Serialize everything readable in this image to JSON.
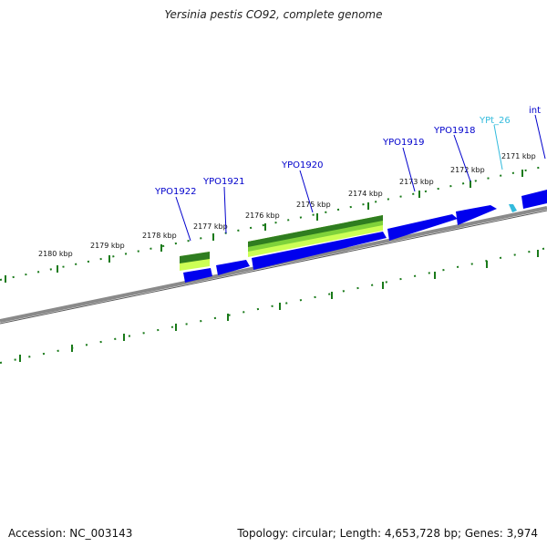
{
  "title": "Yersinia pestis CO92, complete genome",
  "footer": {
    "accession": "Accession: NC_003143",
    "summary": "Topology: circular; Length: 4,653,728 bp; Genes: 3,974"
  },
  "ticks": [
    "2180 kbp",
    "2179 kbp",
    "2178 kbp",
    "2177 kbp",
    "2176 kbp",
    "2175 kbp",
    "2174 kbp",
    "2173 kbp",
    "2172 kbp",
    "2171 kbp"
  ],
  "genes": [
    {
      "label": "YPO1922",
      "color": "#0000cc"
    },
    {
      "label": "YPO1921",
      "color": "#0000cc"
    },
    {
      "label": "YPO1920",
      "color": "#0000cc"
    },
    {
      "label": "YPO1919",
      "color": "#0000cc"
    },
    {
      "label": "YPO1918",
      "color": "#0000cc"
    },
    {
      "label": "YPt_26",
      "color": "#33bbdd"
    },
    {
      "label": "int",
      "color": "#0000cc"
    }
  ],
  "colors": {
    "cds": "#0000ee",
    "trna": "#33bbdd",
    "feature_dark": "#2f7d20",
    "feature_light": "#ccff55",
    "tick": "#1a7a1a",
    "backbone": "#888888"
  }
}
